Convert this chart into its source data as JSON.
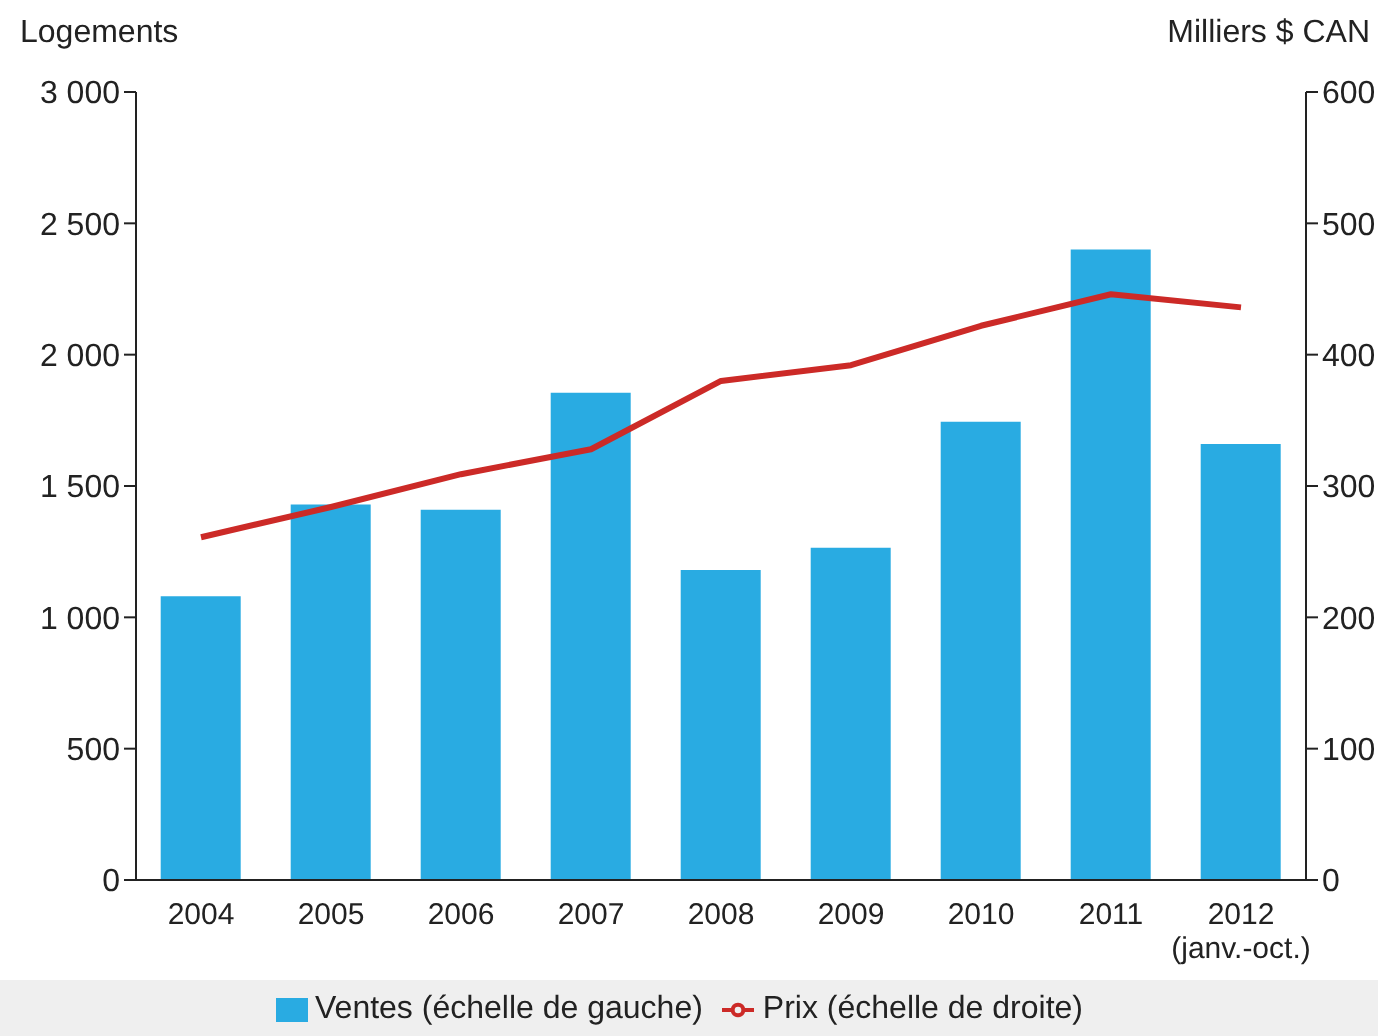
{
  "chart_data": {
    "type": "bar",
    "ylabel": "Logements",
    "y2label": "Milliers $ CAN",
    "categories": [
      "2004",
      "2005",
      "2006",
      "2007",
      "2008",
      "2009",
      "2010",
      "2011",
      "2012\n(janv.-oct.)"
    ],
    "series": [
      {
        "name": "Ventes (échelle de gauche)",
        "color": "#29abe2",
        "values": [
          1080,
          1430,
          1410,
          1855,
          1180,
          1265,
          1745,
          2400,
          1660
        ]
      },
      {
        "name": "Prix (échelle de droite)",
        "type": "line",
        "axis": "y2",
        "color": "#cc2a27",
        "values": [
          261,
          284,
          309,
          328,
          380,
          392,
          422,
          446,
          436
        ]
      }
    ],
    "ylim": [
      0,
      3000
    ],
    "yticks": [
      0,
      500,
      {
        "value": 1000,
        "label": "1 000"
      },
      {
        "value": 1500,
        "label": "1 500"
      },
      {
        "value": 2000,
        "label": "2 000"
      },
      {
        "value": 2500,
        "label": "2 500"
      },
      {
        "value": 3000,
        "label": "3 000"
      }
    ],
    "y2lim": [
      0,
      600
    ],
    "y2ticks": [
      0,
      100,
      200,
      300,
      400,
      500,
      600
    ],
    "grid": false,
    "legend": "bottom",
    "marker": "none",
    "line_style": "solid"
  }
}
